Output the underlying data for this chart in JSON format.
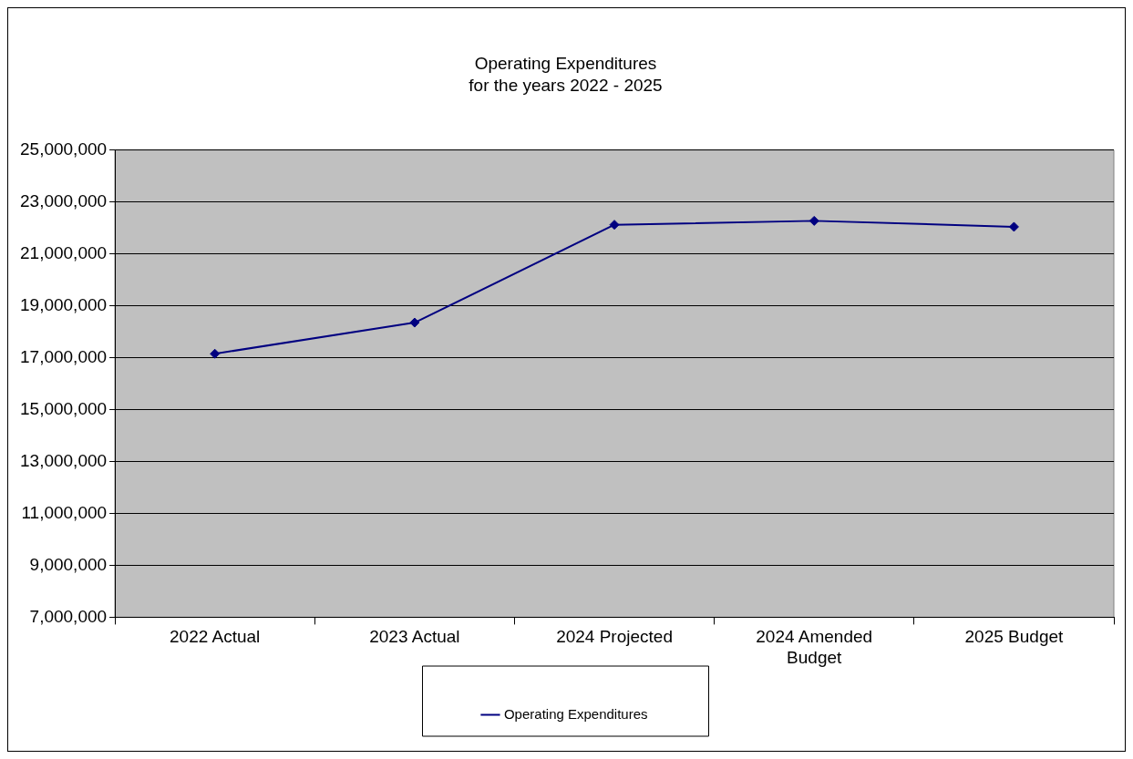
{
  "chart_data": {
    "type": "line",
    "title": "Operating Expenditures",
    "subtitle": "for the years 2022 - 2025",
    "categories": [
      "2022 Actual",
      "2023 Actual",
      "2024 Projected",
      "2024 Amended Budget",
      "2025 Budget"
    ],
    "series": [
      {
        "name": "Operating Expenditures",
        "color": "#000080",
        "values": [
          17150000,
          18350000,
          22120000,
          22270000,
          22040000
        ]
      }
    ],
    "ylim": [
      7000000,
      25000000
    ],
    "yticks": [
      {
        "value": 7000000,
        "label": "7,000,000"
      },
      {
        "value": 9000000,
        "label": "9,000,000"
      },
      {
        "value": 11000000,
        "label": "11,000,000"
      },
      {
        "value": 13000000,
        "label": "13,000,000"
      },
      {
        "value": 15000000,
        "label": "15,000,000"
      },
      {
        "value": 17000000,
        "label": "17,000,000"
      },
      {
        "value": 19000000,
        "label": "19,000,000"
      },
      {
        "value": 21000000,
        "label": "21,000,000"
      },
      {
        "value": 23000000,
        "label": "23,000,000"
      },
      {
        "value": 25000000,
        "label": "25,000,000"
      }
    ],
    "grid": "y",
    "legend": "bottom",
    "marker": "diamond",
    "line_style": "solid"
  }
}
